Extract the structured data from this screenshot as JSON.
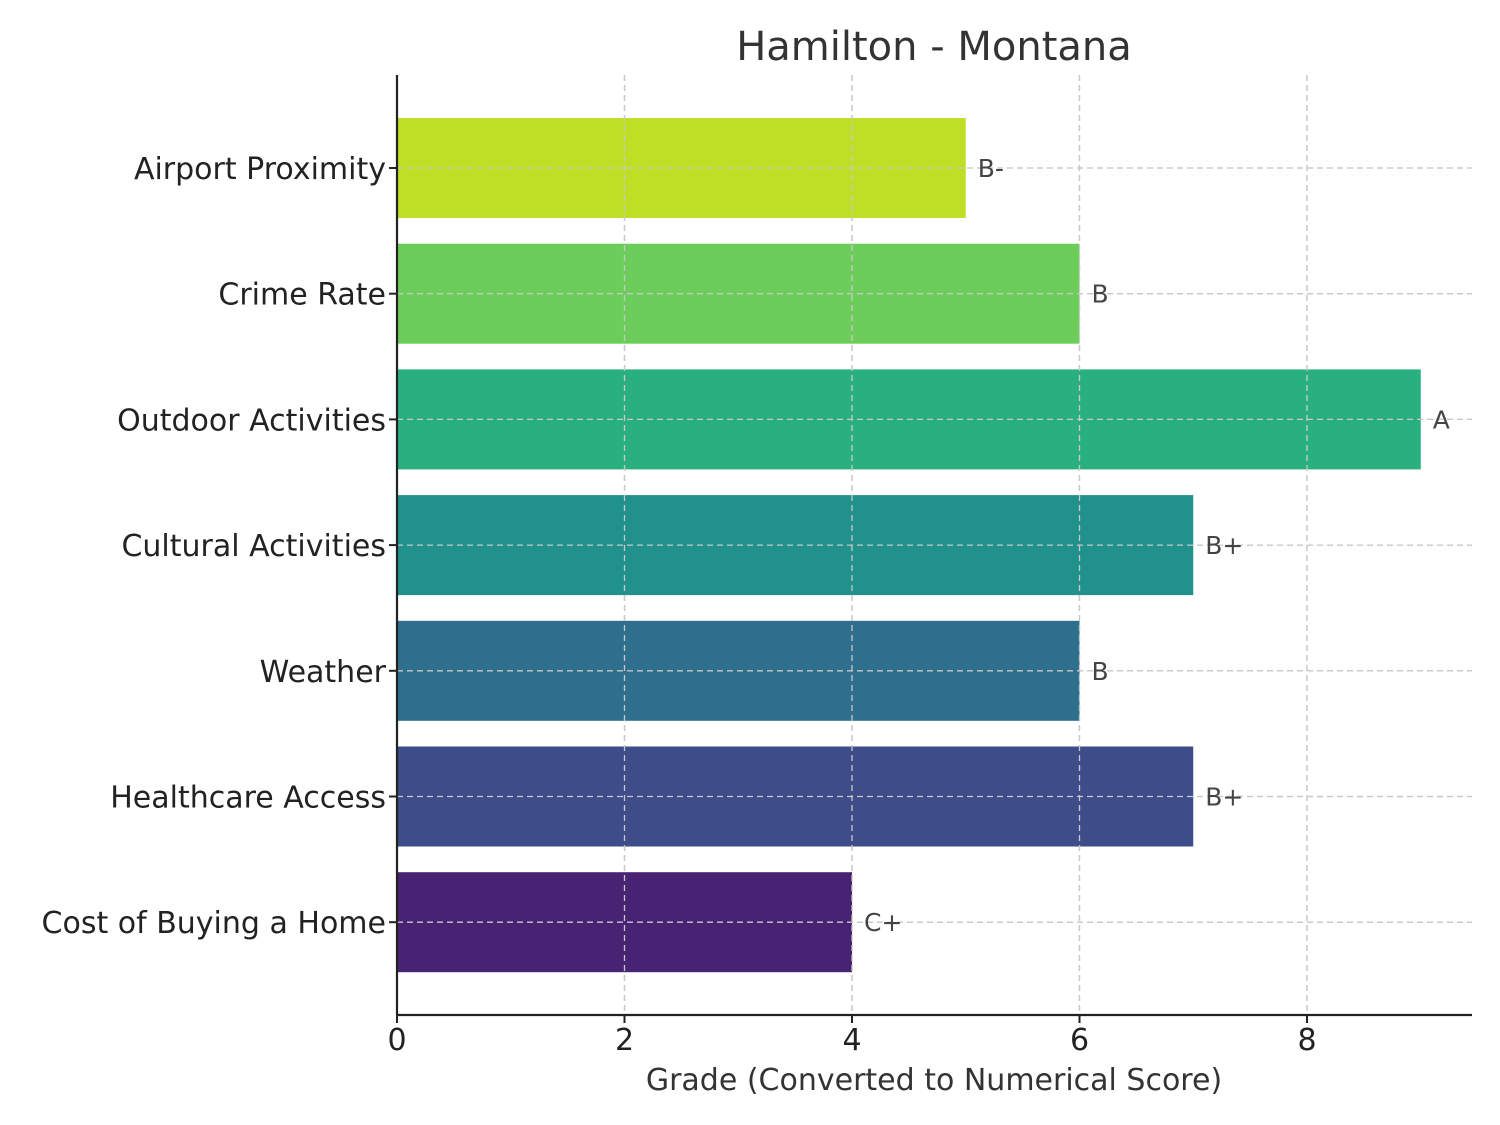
{
  "chart_data": {
    "type": "bar",
    "orientation": "horizontal",
    "title": "Hamilton - Montana",
    "xlabel": "Grade (Converted to Numerical Score)",
    "ylabel": "",
    "xlim": [
      0,
      9.45
    ],
    "xticks": [
      0,
      2,
      4,
      6,
      8
    ],
    "grid": true,
    "categories": [
      "Airport Proximity",
      "Crime Rate",
      "Outdoor Activities",
      "Cultural Activities",
      "Weather",
      "Healthcare Access",
      "Cost of Buying a Home"
    ],
    "values": [
      5,
      6,
      9,
      7,
      6,
      7,
      4
    ],
    "data_labels": [
      "B-",
      "B",
      "A",
      "B+",
      "B",
      "B+",
      "C+"
    ],
    "colors": [
      "#bddf26",
      "#6ccd5a",
      "#2ab07f",
      "#21918c",
      "#2e6f8e",
      "#3e4c8a",
      "#482374"
    ]
  }
}
